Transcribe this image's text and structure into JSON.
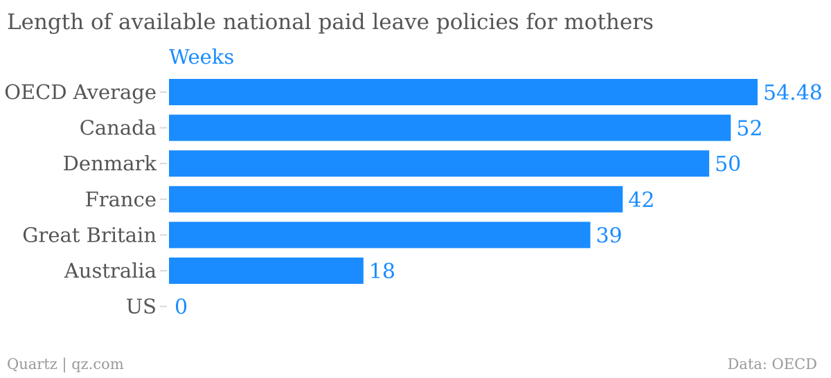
{
  "chart_data": {
    "type": "bar",
    "orientation": "horizontal",
    "title": "Length of available national paid leave policies for mothers",
    "series_label": "Weeks",
    "categories": [
      "OECD Average",
      "Canada",
      "Denmark",
      "France",
      "Great Britain",
      "Australia",
      "US"
    ],
    "values": [
      54.48,
      52,
      50,
      42,
      39,
      18,
      0
    ],
    "value_labels": [
      "54.48",
      "52",
      "50",
      "42",
      "39",
      "18",
      "0"
    ],
    "xlim": [
      0,
      54.48
    ],
    "grid": false,
    "legend": "none",
    "bar_color": "#1a8cff",
    "value_label_color": "#1a8cff",
    "category_label_color": "#555555"
  },
  "footer": {
    "left": "Quartz | qz.com",
    "right": "Data: OECD"
  },
  "colors": {
    "title": "#555555",
    "footer": "#999999",
    "tick": "#d9d9d9"
  }
}
